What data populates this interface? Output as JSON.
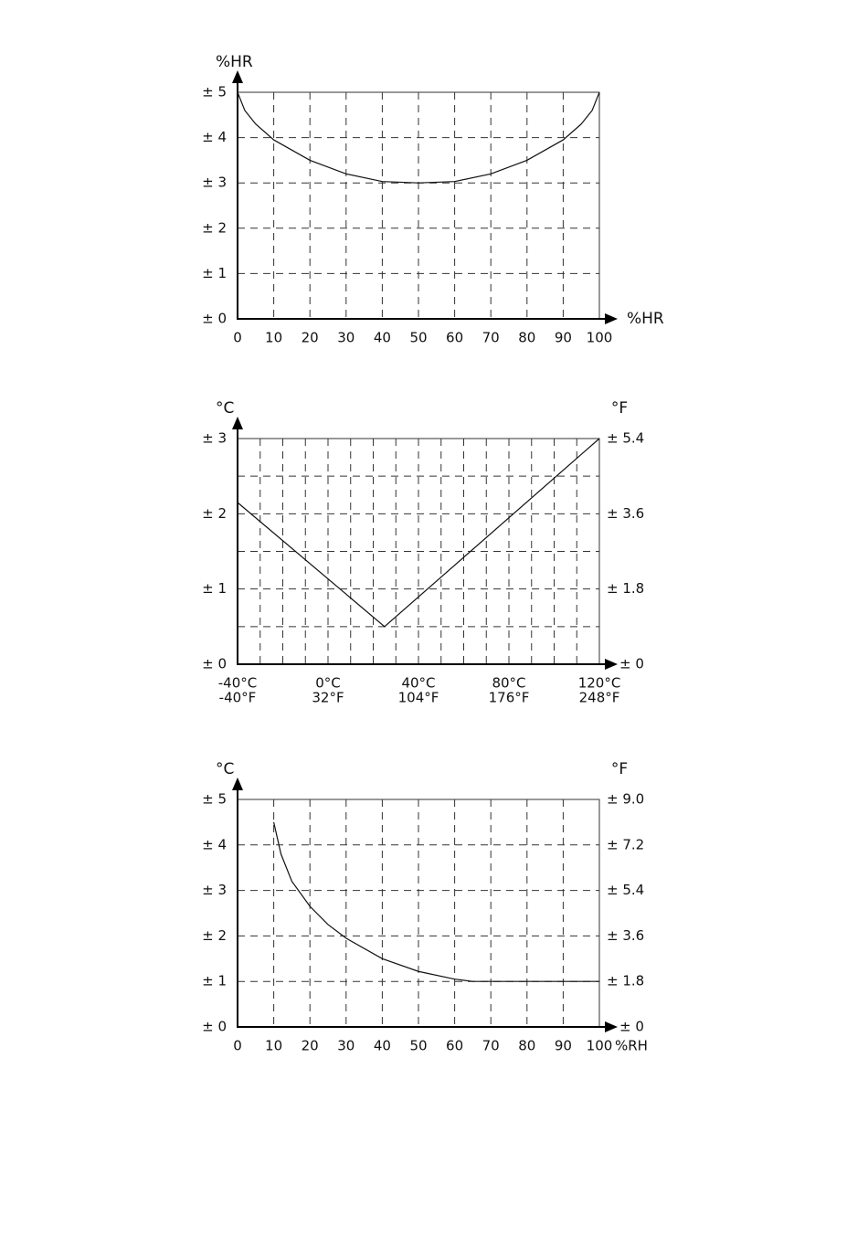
{
  "chart_data": [
    {
      "type": "line",
      "y_label": "%HR",
      "x_label": "%HR",
      "color": "#111",
      "xlim": [
        0,
        100
      ],
      "ylim": [
        0,
        5
      ],
      "xticks": [
        0,
        10,
        20,
        30,
        40,
        50,
        60,
        70,
        80,
        90,
        100
      ],
      "yticks": [
        {
          "value": 0,
          "label": "± 0"
        },
        {
          "value": 1,
          "label": "± 1"
        },
        {
          "value": 2,
          "label": "± 2"
        },
        {
          "value": 3,
          "label": "± 3"
        },
        {
          "value": 4,
          "label": "± 4"
        },
        {
          "value": 5,
          "label": "± 5"
        }
      ],
      "grid": true,
      "x": [
        0,
        2,
        5,
        10,
        20,
        30,
        40,
        50,
        60,
        70,
        80,
        90,
        95,
        98,
        100
      ],
      "values": [
        5,
        4.6,
        4.3,
        3.95,
        3.5,
        3.2,
        3.03,
        3,
        3.03,
        3.2,
        3.5,
        3.95,
        4.3,
        4.6,
        5
      ]
    },
    {
      "type": "line",
      "y_label": "°C",
      "y2_label": "°F",
      "color": "#111",
      "xlim": [
        -40,
        120
      ],
      "ylim": [
        0,
        3
      ],
      "x2lim": [
        -40,
        248
      ],
      "y2lim": [
        0,
        5.4
      ],
      "xticks": [
        {
          "value": -40,
          "label": "-40°C"
        },
        {
          "value": 0,
          "label": "0°C"
        },
        {
          "value": 40,
          "label": "40°C"
        },
        {
          "value": 80,
          "label": "80°C"
        },
        {
          "value": 120,
          "label": "120°C"
        }
      ],
      "x2ticks": [
        {
          "value": -40,
          "label": "-40°F"
        },
        {
          "value": 32,
          "label": "32°F"
        },
        {
          "value": 104,
          "label": "104°F"
        },
        {
          "value": 176,
          "label": "176°F"
        },
        {
          "value": 248,
          "label": "248°F"
        }
      ],
      "yticks": [
        {
          "value": 0,
          "label": "± 0"
        },
        {
          "value": 1,
          "label": "± 1"
        },
        {
          "value": 2,
          "label": "± 2"
        },
        {
          "value": 3,
          "label": "± 3"
        }
      ],
      "y2ticks": [
        {
          "value": 0,
          "label": "± 0"
        },
        {
          "value": 1.8,
          "label": "± 1.8"
        },
        {
          "value": 3.6,
          "label": "± 3.6"
        },
        {
          "value": 5.4,
          "label": "± 5.4"
        }
      ],
      "minor_xticks": [
        -30,
        -20,
        -10,
        10,
        20,
        30,
        50,
        60,
        70,
        90,
        100,
        110
      ],
      "minor_yticks": [
        0.5,
        1.5,
        2.5
      ],
      "grid": true,
      "x": [
        -40,
        25,
        120
      ],
      "values": [
        2.15,
        0.5,
        3
      ]
    },
    {
      "type": "line",
      "y_label": "°C",
      "y2_label": "°F",
      "x_label": "%RH",
      "color": "#111",
      "xlim": [
        0,
        100
      ],
      "ylim": [
        0,
        5
      ],
      "y2lim": [
        0,
        9
      ],
      "xticks": [
        0,
        10,
        20,
        30,
        40,
        50,
        60,
        70,
        80,
        90,
        100
      ],
      "yticks": [
        {
          "value": 0,
          "label": "± 0"
        },
        {
          "value": 1,
          "label": "± 1"
        },
        {
          "value": 2,
          "label": "± 2"
        },
        {
          "value": 3,
          "label": "± 3"
        },
        {
          "value": 4,
          "label": "± 4"
        },
        {
          "value": 5,
          "label": "± 5"
        }
      ],
      "y2ticks": [
        {
          "value": 0,
          "label": "± 0"
        },
        {
          "value": 1.8,
          "label": "± 1.8"
        },
        {
          "value": 3.6,
          "label": "± 3.6"
        },
        {
          "value": 5.4,
          "label": "± 5.4"
        },
        {
          "value": 7.2,
          "label": "± 7.2"
        },
        {
          "value": 9,
          "label": "± 9.0"
        }
      ],
      "grid": true,
      "x": [
        10,
        12,
        15,
        20,
        25,
        30,
        40,
        50,
        60,
        65,
        70,
        80,
        90,
        100
      ],
      "values": [
        4.5,
        3.8,
        3.2,
        2.65,
        2.25,
        1.95,
        1.5,
        1.22,
        1.05,
        1,
        1,
        1,
        1,
        1
      ]
    }
  ]
}
